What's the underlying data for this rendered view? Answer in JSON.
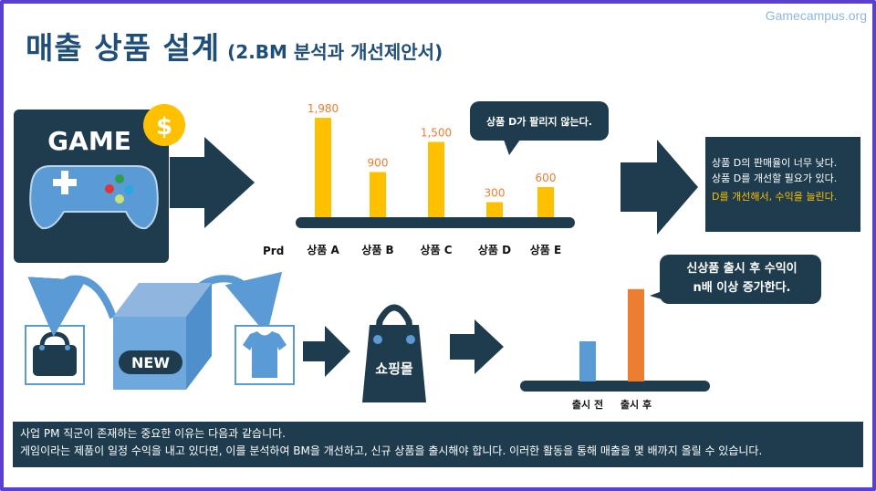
{
  "watermark": "Gamecampus.org",
  "title": "매출 상품 설계",
  "subtitle": "(2.BM 분석과 개선제안서)",
  "game_card": {
    "label": "GAME",
    "coin": "$"
  },
  "chart_data": [
    {
      "type": "bar",
      "axis_label": "Prd",
      "categories": [
        "상품 A",
        "상품 B",
        "상품 C",
        "상품 D",
        "상품 E"
      ],
      "values": [
        1980,
        900,
        1500,
        300,
        600
      ],
      "value_labels": [
        "1,980",
        "900",
        "1,500",
        "300",
        "600"
      ],
      "bar_color": "#ffc000",
      "ylim": [
        0,
        2000
      ]
    },
    {
      "type": "bar",
      "categories": [
        "출시 전",
        "출시 후"
      ],
      "values": [
        1,
        2.3
      ],
      "colors": [
        "#5b9bd5",
        "#ed7d31"
      ]
    }
  ],
  "callout_d": "상품 D가 팔리지 않는다.",
  "analysis_box": {
    "line1": "상품 D의 판매율이 너무 낮다.",
    "line2": "상품 D를 개선할 필요가 있다.",
    "highlight": "D를 개선해서, 수익을 늘린다.",
    "highlight_color": "#ffc000"
  },
  "new_box_label": "NEW",
  "shop_label": "쇼핑몰",
  "callout_new": {
    "line1": "신상품 출시 후 수익이",
    "line2": "n배 이상 증가한다."
  },
  "bottom": {
    "line1": "사업 PM 직군이 존재하는 중요한 이유는 다음과 같습니다.",
    "line2": "게임이라는 제품이 일정 수익을 내고 있다면, 이를 분석하여 BM을 개선하고, 신규 상품을 출시해야 합니다. 이러한 활동을 통해 매출을 몇 배까지 올릴 수 있습니다."
  },
  "colors": {
    "navy": "#1e3c4d",
    "dark_blue": "#1f4e79",
    "light_blue": "#5b9bd5",
    "gold": "#ffc000",
    "orange": "#ed7d31"
  },
  "icons": [
    "gamepad-icon",
    "dollar-coin-icon",
    "arrow-right-icon",
    "bag-icon",
    "tshirt-icon",
    "box-icon",
    "shopping-bag-icon"
  ]
}
